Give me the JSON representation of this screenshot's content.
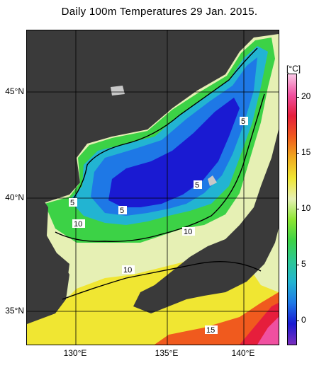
{
  "title": "Daily 100m Temperatures 29 Jan. 2015.",
  "map": {
    "lat_labels": [
      "45°N",
      "40°N",
      "35°N"
    ],
    "lon_labels": [
      "130°E",
      "135°E",
      "140°E"
    ],
    "contour_labels": [
      "5",
      "5",
      "5",
      "5",
      "10",
      "10",
      "10",
      "15"
    ]
  },
  "colorbar": {
    "unit": "[°C]",
    "ticks": [
      "20",
      "15",
      "10",
      "5",
      "0"
    ],
    "colors": [
      "#7b2fbe",
      "#1a1ad2",
      "#1e78e6",
      "#22b4d2",
      "#2cc896",
      "#3cd246",
      "#8ce632",
      "#e6f0b4",
      "#f0e632",
      "#f0aa1e",
      "#f05a1e",
      "#e61e3c",
      "#f050a0",
      "#fac8e6"
    ]
  }
}
